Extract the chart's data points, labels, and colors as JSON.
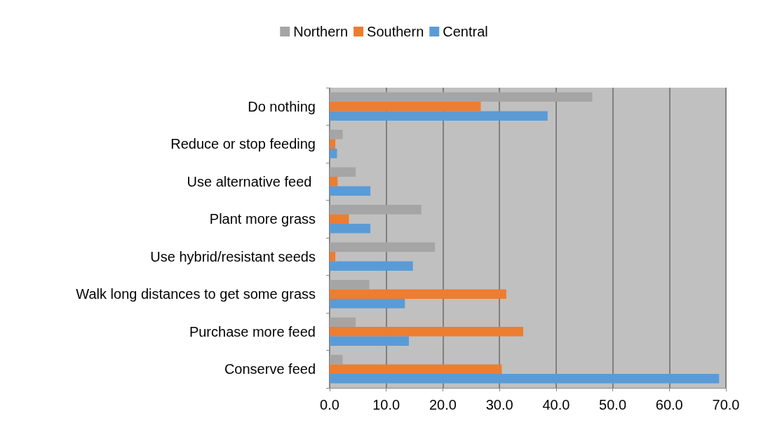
{
  "chart_data": {
    "type": "bar",
    "orientation": "horizontal",
    "categories": [
      "Do nothing",
      "Reduce or stop feeding",
      "Use alternative feed ",
      "Plant more grass",
      "Use hybrid/resistant seeds",
      "Walk long distances to get some grass",
      "Purchase more feed",
      "Conserve feed"
    ],
    "series": [
      {
        "name": "Northern",
        "color": "#a5a5a5",
        "values": [
          46.4,
          2.3,
          4.6,
          16.2,
          18.6,
          7.0,
          4.6,
          2.3
        ]
      },
      {
        "name": "Southern",
        "color": "#ed7d31",
        "values": [
          26.7,
          1.0,
          1.4,
          3.4,
          1.0,
          31.2,
          34.2,
          30.4
        ]
      },
      {
        "name": "Central",
        "color": "#5b9bd5",
        "values": [
          38.5,
          1.3,
          7.2,
          7.2,
          14.7,
          13.3,
          14.0,
          68.8
        ]
      }
    ],
    "xlim": [
      0,
      70
    ],
    "xticks": [
      {
        "value": 0,
        "label": "0.0"
      },
      {
        "value": 10,
        "label": "10.0"
      },
      {
        "value": 20,
        "label": "20.0"
      },
      {
        "value": 30,
        "label": "30.0"
      },
      {
        "value": 40,
        "label": "40.0"
      },
      {
        "value": 50,
        "label": "50.0"
      },
      {
        "value": 60,
        "label": "60.0"
      },
      {
        "value": 70,
        "label": "70.0"
      }
    ],
    "grid": "x",
    "legend": "top"
  }
}
